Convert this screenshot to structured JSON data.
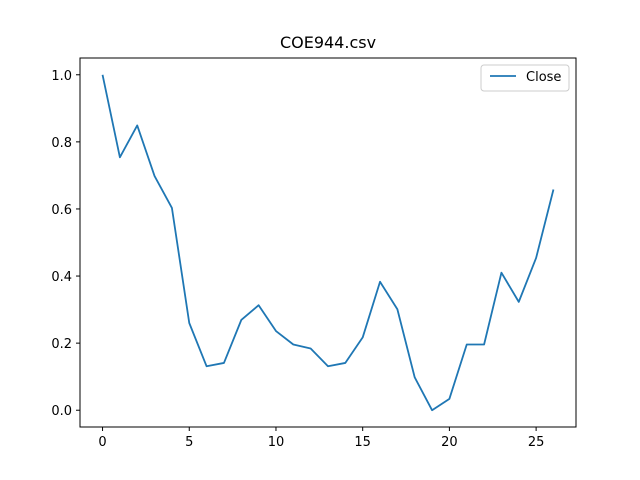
{
  "chart_data": {
    "type": "line",
    "title": "COE944.csv",
    "xlabel": "",
    "ylabel": "",
    "xlim": [
      -1.3,
      27.3
    ],
    "ylim": [
      -0.05,
      1.05
    ],
    "xticks": [
      0,
      5,
      10,
      15,
      20,
      25
    ],
    "yticks": [
      0.0,
      0.2,
      0.4,
      0.6,
      0.8,
      1.0
    ],
    "xtick_labels": [
      "0",
      "5",
      "10",
      "15",
      "20",
      "25"
    ],
    "ytick_labels": [
      "0.0",
      "0.2",
      "0.4",
      "0.6",
      "0.8",
      "1.0"
    ],
    "grid": false,
    "legend_position": "top-right",
    "series": [
      {
        "name": "Close",
        "color": "#1f77b4",
        "x": [
          0,
          1,
          2,
          3,
          4,
          5,
          6,
          7,
          8,
          9,
          10,
          11,
          12,
          13,
          14,
          15,
          16,
          17,
          18,
          19,
          20,
          21,
          22,
          23,
          24,
          25,
          26
        ],
        "values": [
          1.0,
          0.754,
          0.849,
          0.698,
          0.603,
          0.26,
          0.131,
          0.141,
          0.269,
          0.313,
          0.236,
          0.196,
          0.184,
          0.131,
          0.141,
          0.217,
          0.383,
          0.301,
          0.098,
          0.0,
          0.034,
          0.196,
          0.196,
          0.41,
          0.323,
          0.454,
          0.658
        ]
      }
    ]
  }
}
